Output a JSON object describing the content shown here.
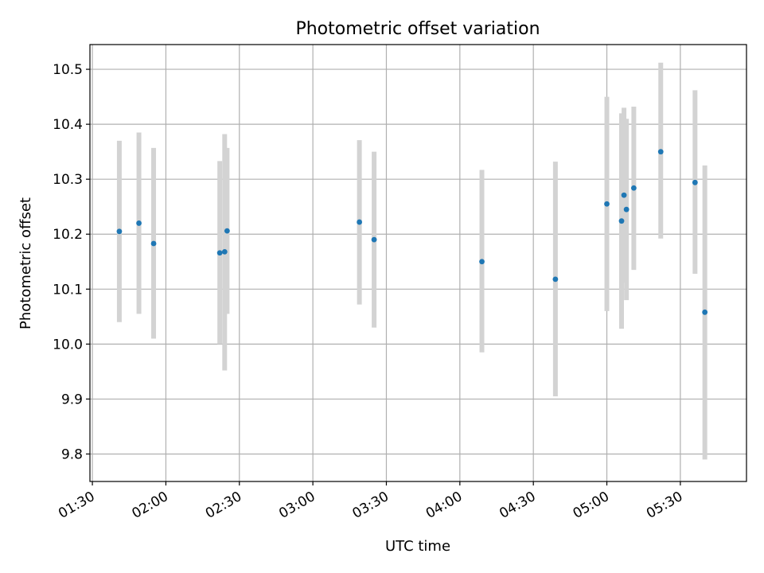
{
  "chart_data": {
    "type": "scatter",
    "title": "Photometric offset variation",
    "xlabel": "UTC time",
    "ylabel": "Photometric offset",
    "xlim": [
      "01:29",
      "05:57"
    ],
    "ylim": [
      9.75,
      10.545
    ],
    "xticks": [
      "01:30",
      "02:00",
      "02:30",
      "03:00",
      "03:30",
      "04:00",
      "04:30",
      "05:00",
      "05:30"
    ],
    "yticks": [
      9.8,
      9.9,
      10.0,
      10.1,
      10.2,
      10.3,
      10.4,
      10.5
    ],
    "grid": true,
    "marker_color": "#1f77b4",
    "errorbar_color": "#d3d3d3",
    "points": [
      {
        "x": "01:41",
        "y": 10.205,
        "lo": 10.04,
        "hi": 10.37
      },
      {
        "x": "01:49",
        "y": 10.22,
        "lo": 10.055,
        "hi": 10.385
      },
      {
        "x": "01:55",
        "y": 10.183,
        "lo": 10.01,
        "hi": 10.357
      },
      {
        "x": "02:22",
        "y": 10.166,
        "lo": 10.0,
        "hi": 10.333
      },
      {
        "x": "02:24",
        "y": 10.168,
        "lo": 9.952,
        "hi": 10.382
      },
      {
        "x": "02:25",
        "y": 10.206,
        "lo": 10.055,
        "hi": 10.357
      },
      {
        "x": "03:19",
        "y": 10.222,
        "lo": 10.072,
        "hi": 10.371
      },
      {
        "x": "03:25",
        "y": 10.19,
        "lo": 10.03,
        "hi": 10.35
      },
      {
        "x": "04:09",
        "y": 10.15,
        "lo": 9.985,
        "hi": 10.317
      },
      {
        "x": "04:39",
        "y": 10.118,
        "lo": 9.905,
        "hi": 10.332
      },
      {
        "x": "05:00",
        "y": 10.255,
        "lo": 10.06,
        "hi": 10.45
      },
      {
        "x": "05:06",
        "y": 10.224,
        "lo": 10.028,
        "hi": 10.42
      },
      {
        "x": "05:07",
        "y": 10.271,
        "lo": 10.112,
        "hi": 10.43
      },
      {
        "x": "05:08",
        "y": 10.245,
        "lo": 10.08,
        "hi": 10.41
      },
      {
        "x": "05:11",
        "y": 10.284,
        "lo": 10.135,
        "hi": 10.432
      },
      {
        "x": "05:22",
        "y": 10.35,
        "lo": 10.192,
        "hi": 10.512
      },
      {
        "x": "05:36",
        "y": 10.294,
        "lo": 10.128,
        "hi": 10.462
      },
      {
        "x": "05:40",
        "y": 10.058,
        "lo": 9.79,
        "hi": 10.325
      }
    ]
  }
}
